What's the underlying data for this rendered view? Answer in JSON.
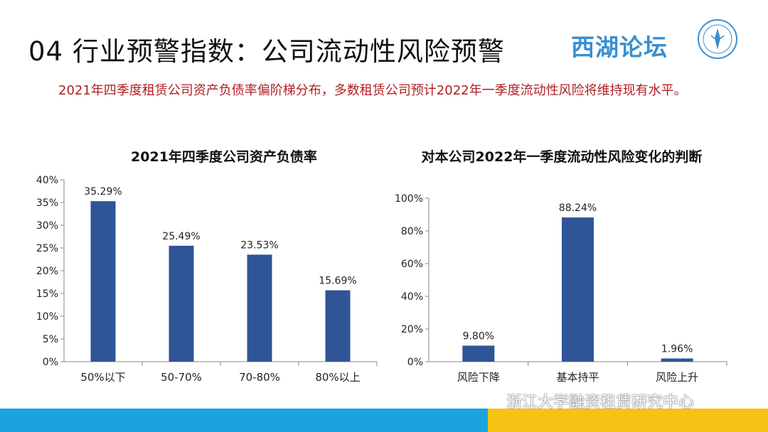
{
  "slide": {
    "title": "04 行业预警指数：公司流动性风险预警",
    "brand": "西湖论坛",
    "lead": "2021年四季度租赁公司资产负债率偏阶梯分布，多数租赁公司预计2022年一季度流动性风险将维持现有水平。",
    "watermark": "浙江大学融资租赁研究中心"
  },
  "colors": {
    "bar": "#2f5597",
    "lead_text": "#b01e23",
    "band_blue": "#1aa3df",
    "band_yellow": "#f6c315",
    "brand": "#3a8fd0"
  },
  "icons": [
    "seal-logo-icon",
    "wechat-icon"
  ],
  "chart_data": [
    {
      "type": "bar",
      "title": "2021年四季度公司资产负债率",
      "categories": [
        "50%以下",
        "50-70%",
        "70-80%",
        "80%以上"
      ],
      "values": [
        35.29,
        25.49,
        23.53,
        15.69
      ],
      "data_labels": [
        "35.29%",
        "25.49%",
        "23.53%",
        "15.69%"
      ],
      "ylim": [
        0,
        40
      ],
      "yticks": [
        "0%",
        "5%",
        "10%",
        "15%",
        "20%",
        "25%",
        "30%",
        "35%",
        "40%"
      ],
      "grid": false,
      "xlabel": "",
      "ylabel": ""
    },
    {
      "type": "bar",
      "title": "对本公司2022年一季度流动性风险变化的判断",
      "categories": [
        "风险下降",
        "基本持平",
        "风险上升"
      ],
      "values": [
        9.8,
        88.24,
        1.96
      ],
      "data_labels": [
        "9.80%",
        "88.24%",
        "1.96%"
      ],
      "ylim": [
        0,
        100
      ],
      "yticks": [
        "0%",
        "20%",
        "40%",
        "60%",
        "80%",
        "100%"
      ],
      "grid": false,
      "xlabel": "",
      "ylabel": ""
    }
  ]
}
